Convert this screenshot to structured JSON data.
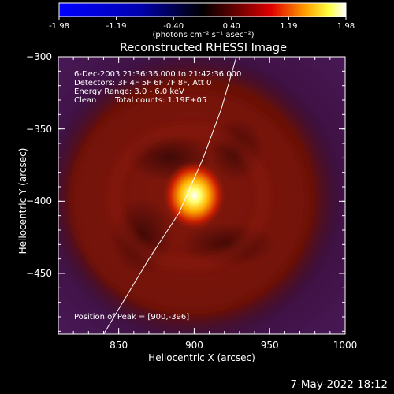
{
  "colorbar": {
    "ticks": [
      "-1.98",
      "-1.19",
      "-0.40",
      "0.40",
      "1.19",
      "1.98"
    ],
    "tick_values": [
      -1.98,
      -1.19,
      -0.4,
      0.4,
      1.19,
      1.98
    ],
    "units": "(photons cm⁻² s⁻¹ asec⁻²)",
    "colors": [
      "#0000ff",
      "#000000",
      "#ff0000",
      "#ffff00",
      "#ffffff"
    ]
  },
  "chart_data": {
    "type": "heatmap",
    "title": "Reconstructed RHESSI Image",
    "xlabel": "Heliocentric X (arcsec)",
    "ylabel": "Heliocentric Y (arcsec)",
    "xlim": [
      810,
      1000
    ],
    "ylim": [
      -492,
      -300
    ],
    "x_ticks": [
      850,
      900,
      950,
      1000
    ],
    "y_ticks": [
      -300,
      -350,
      -400,
      -450
    ],
    "x_tick_labels": [
      "850",
      "900",
      "950",
      "1000"
    ],
    "y_tick_labels": [
      "−300",
      "−350",
      "−400",
      "−450"
    ],
    "annotations": {
      "time_range": "6-Dec-2003 21:36:36.000 to 21:42:36.000",
      "detectors": "Detectors: 3F 4F 5F 6F 7F 8F, Att 0",
      "energy": "Energy Range: 3.0 - 6.0 keV",
      "clean": "Clean",
      "counts": "Total counts: 1.19E+05",
      "peak": "Position of Peak = [900,-396]"
    },
    "peak_position": [
      900,
      -396
    ],
    "limb_curve": [
      [
        840,
        -492
      ],
      [
        870,
        -440
      ],
      [
        890,
        -408
      ],
      [
        906,
        -370
      ],
      [
        918,
        -336
      ],
      [
        928,
        -300
      ]
    ]
  },
  "footer_date": "7-May-2022 18:12"
}
